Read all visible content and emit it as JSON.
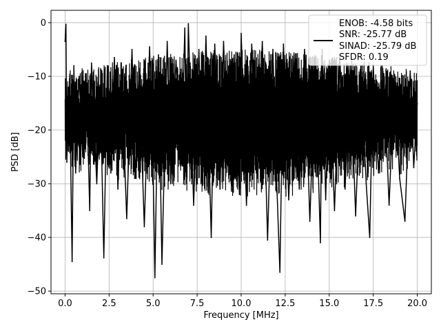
{
  "chart_data": {
    "type": "line",
    "title": "",
    "xlabel": "Frequency [MHz]",
    "ylabel": "PSD [dB]",
    "xlim": [
      -0.8,
      20.8
    ],
    "ylim": [
      -50.5,
      2.3
    ],
    "xticks": [
      0.0,
      2.5,
      5.0,
      7.5,
      10.0,
      12.5,
      15.0,
      17.5,
      20.0
    ],
    "xtick_labels": [
      "0.0",
      "2.5",
      "5.0",
      "7.5",
      "10.0",
      "12.5",
      "15.0",
      "17.5",
      "20.0"
    ],
    "yticks": [
      0,
      -10,
      -20,
      -30,
      -40,
      -50
    ],
    "ytick_labels": [
      "0",
      "−10",
      "−20",
      "−30",
      "−40",
      "−50"
    ],
    "grid": true,
    "legend_position": "top-right",
    "legend": {
      "lines": [
        "ENOB: -4.58 bits",
        "SNR: -25.77 dB",
        "SINAD: -25.79 dB",
        "SFDR: 0.19"
      ]
    },
    "series": [
      {
        "color": "#000000",
        "x": [
          0.0,
          0.05,
          0.1,
          0.2,
          0.3,
          0.4,
          0.5,
          0.6,
          0.8,
          1.0,
          1.2,
          1.4,
          1.5,
          1.8,
          2.0,
          2.2,
          2.4,
          2.6,
          2.8,
          3.0,
          3.2,
          3.5,
          3.8,
          4.0,
          4.2,
          4.5,
          4.8,
          5.0,
          5.1,
          5.3,
          5.5,
          5.8,
          6.0,
          6.3,
          6.6,
          6.8,
          6.9,
          7.0,
          7.3,
          7.6,
          7.8,
          8.0,
          8.3,
          8.5,
          8.8,
          9.0,
          9.3,
          9.6,
          9.9,
          10.0,
          10.3,
          10.6,
          10.9,
          11.2,
          11.5,
          11.8,
          12.0,
          12.2,
          12.4,
          12.7,
          13.0,
          13.3,
          13.6,
          13.9,
          14.2,
          14.5,
          14.6,
          14.8,
          15.0,
          15.3,
          15.6,
          15.9,
          16.2,
          16.5,
          16.8,
          17.1,
          17.3,
          17.5,
          17.8,
          18.1,
          18.4,
          18.7,
          19.0,
          19.3,
          19.6,
          19.8,
          20.0
        ],
        "y": [
          -3.5,
          -0.3,
          -26.0,
          -12.0,
          -22.0,
          -44.5,
          -8.0,
          -28.0,
          -10.0,
          -25.0,
          -9.5,
          -35.0,
          -7.5,
          -30.0,
          -12.0,
          -43.8,
          -8.0,
          -28.0,
          -6.5,
          -31.0,
          -9.0,
          -36.5,
          -5.0,
          -29.0,
          -8.5,
          -38.0,
          -4.5,
          -27.0,
          -47.5,
          -6.0,
          -45.0,
          -3.5,
          -30.0,
          -7.0,
          -25.0,
          -1.0,
          -30.0,
          -0.2,
          -34.0,
          -5.0,
          -28.0,
          -2.5,
          -40.0,
          -4.0,
          -31.0,
          -3.5,
          -29.0,
          -6.0,
          -32.0,
          -2.0,
          -34.0,
          -4.0,
          -29.0,
          -3.5,
          -40.5,
          -5.0,
          -28.0,
          -46.5,
          -4.0,
          -33.0,
          -6.0,
          -31.0,
          -5.0,
          -37.0,
          -6.5,
          -41.0,
          -5.0,
          -33.0,
          -7.0,
          -35.0,
          -6.0,
          -31.0,
          -8.0,
          -36.0,
          -9.0,
          -30.0,
          -40.0,
          -8.0,
          -28.0,
          -9.5,
          -34.0,
          -10.0,
          -29.0,
          -37.0,
          -9.0,
          -27.0,
          -15.0
        ]
      }
    ]
  }
}
